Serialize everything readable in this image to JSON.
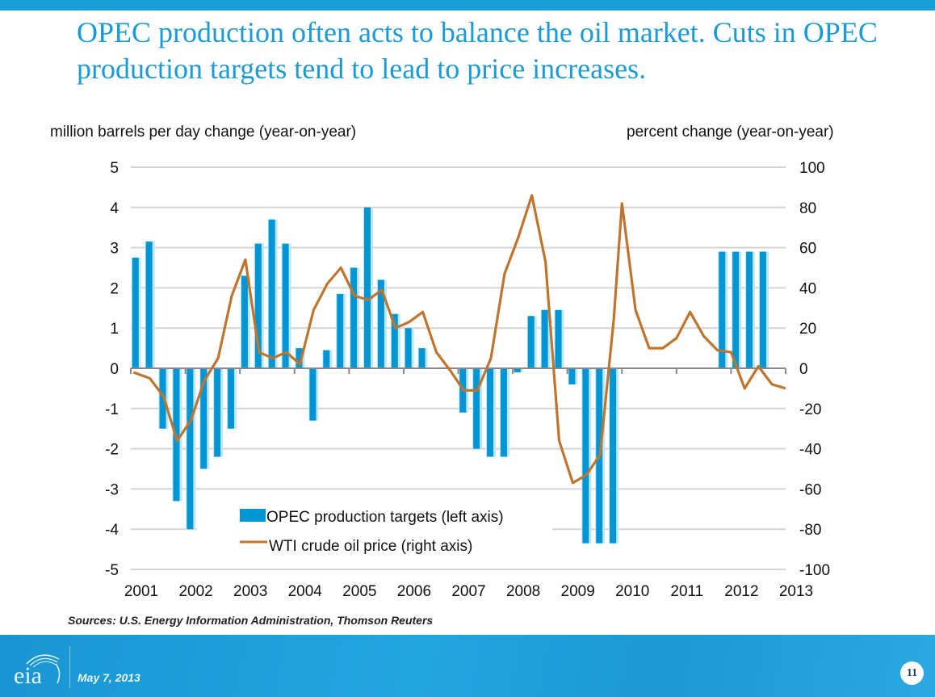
{
  "slide": {
    "title": "OPEC production often acts to balance the oil market. Cuts in OPEC production targets tend to lead to price increases.",
    "source": "Sources: U.S. Energy Information Administration, Thomson Reuters",
    "date": "May 7, 2013",
    "page_number": "11",
    "logo_text": "eia",
    "colors": {
      "accent": "#179fd8",
      "title": "#1a9ad6",
      "bar": "#0096d6",
      "line": "#c0752e"
    }
  },
  "chart_data": {
    "type": "bar",
    "title": "",
    "left_axis_label": "million barrels per day change (year-on-year)",
    "right_axis_label": "percent change (year-on-year)",
    "left_ylim": [
      -5,
      5
    ],
    "right_ylim": [
      -100,
      100
    ],
    "left_ticks": [
      "5",
      "4",
      "3",
      "2",
      "1",
      "0",
      "-1",
      "-2",
      "-3",
      "-4",
      "-5"
    ],
    "right_ticks": [
      "100",
      "80",
      "60",
      "40",
      "20",
      "0",
      "-20",
      "-40",
      "-60",
      "-80",
      "-100"
    ],
    "x_ticks": [
      "2001",
      "2002",
      "2003",
      "2004",
      "2005",
      "2006",
      "2007",
      "2008",
      "2009",
      "2010",
      "2011",
      "2012",
      "2013"
    ],
    "xlim": [
      2001,
      2013
    ],
    "grid": true,
    "legend_position": "bottom-center",
    "series": [
      {
        "name": "OPEC production targets (left axis)",
        "type": "bar",
        "axis": "left",
        "x": [
          2001.1,
          2001.35,
          2001.6,
          2001.85,
          2002.1,
          2002.35,
          2002.6,
          2002.85,
          2003.1,
          2003.35,
          2003.6,
          2003.85,
          2004.1,
          2004.35,
          2004.6,
          2004.85,
          2005.1,
          2005.35,
          2005.6,
          2005.85,
          2006.1,
          2006.35,
          2007.1,
          2007.35,
          2007.6,
          2007.85,
          2008.1,
          2008.35,
          2008.6,
          2008.85,
          2009.1,
          2009.35,
          2009.6,
          2009.85,
          2011.85,
          2012.1,
          2012.35,
          2012.6
        ],
        "values": [
          2.75,
          3.15,
          -1.5,
          -3.3,
          -4.0,
          -2.5,
          -2.2,
          -1.5,
          2.3,
          3.1,
          3.7,
          3.1,
          0.5,
          -1.3,
          0.45,
          1.85,
          2.5,
          4.0,
          2.2,
          1.35,
          1.0,
          0.5,
          -1.1,
          -2.0,
          -2.2,
          -2.2,
          -0.1,
          1.3,
          1.45,
          1.45,
          -0.4,
          -4.35,
          -4.35,
          -4.35,
          2.9,
          2.9,
          2.9,
          2.9
        ]
      },
      {
        "name": "WTI crude oil price (right axis)",
        "type": "line",
        "axis": "right",
        "x": [
          2001.05,
          2001.35,
          2001.6,
          2001.85,
          2002.1,
          2002.35,
          2002.6,
          2002.85,
          2003.1,
          2003.35,
          2003.6,
          2003.85,
          2004.1,
          2004.35,
          2004.6,
          2004.85,
          2005.1,
          2005.35,
          2005.6,
          2005.85,
          2006.1,
          2006.35,
          2006.6,
          2006.85,
          2007.1,
          2007.35,
          2007.6,
          2007.85,
          2008.1,
          2008.35,
          2008.6,
          2008.85,
          2009.1,
          2009.35,
          2009.6,
          2009.85,
          2010.0,
          2010.25,
          2010.5,
          2010.75,
          2011.0,
          2011.25,
          2011.5,
          2011.75,
          2012.0,
          2012.25,
          2012.5,
          2012.75,
          2013.0
        ],
        "values": [
          -2,
          -5,
          -14,
          -36,
          -26,
          -6,
          5,
          36,
          54,
          8,
          5,
          8,
          2,
          29,
          42,
          50,
          36,
          34,
          39,
          20,
          23,
          28,
          8,
          -1,
          -11,
          -11,
          5,
          47,
          65,
          86,
          53,
          -36,
          -57,
          -53,
          -43,
          24,
          82,
          29,
          10,
          10,
          15,
          28,
          16,
          9,
          8,
          -10,
          1,
          -8,
          -10
        ]
      }
    ]
  }
}
